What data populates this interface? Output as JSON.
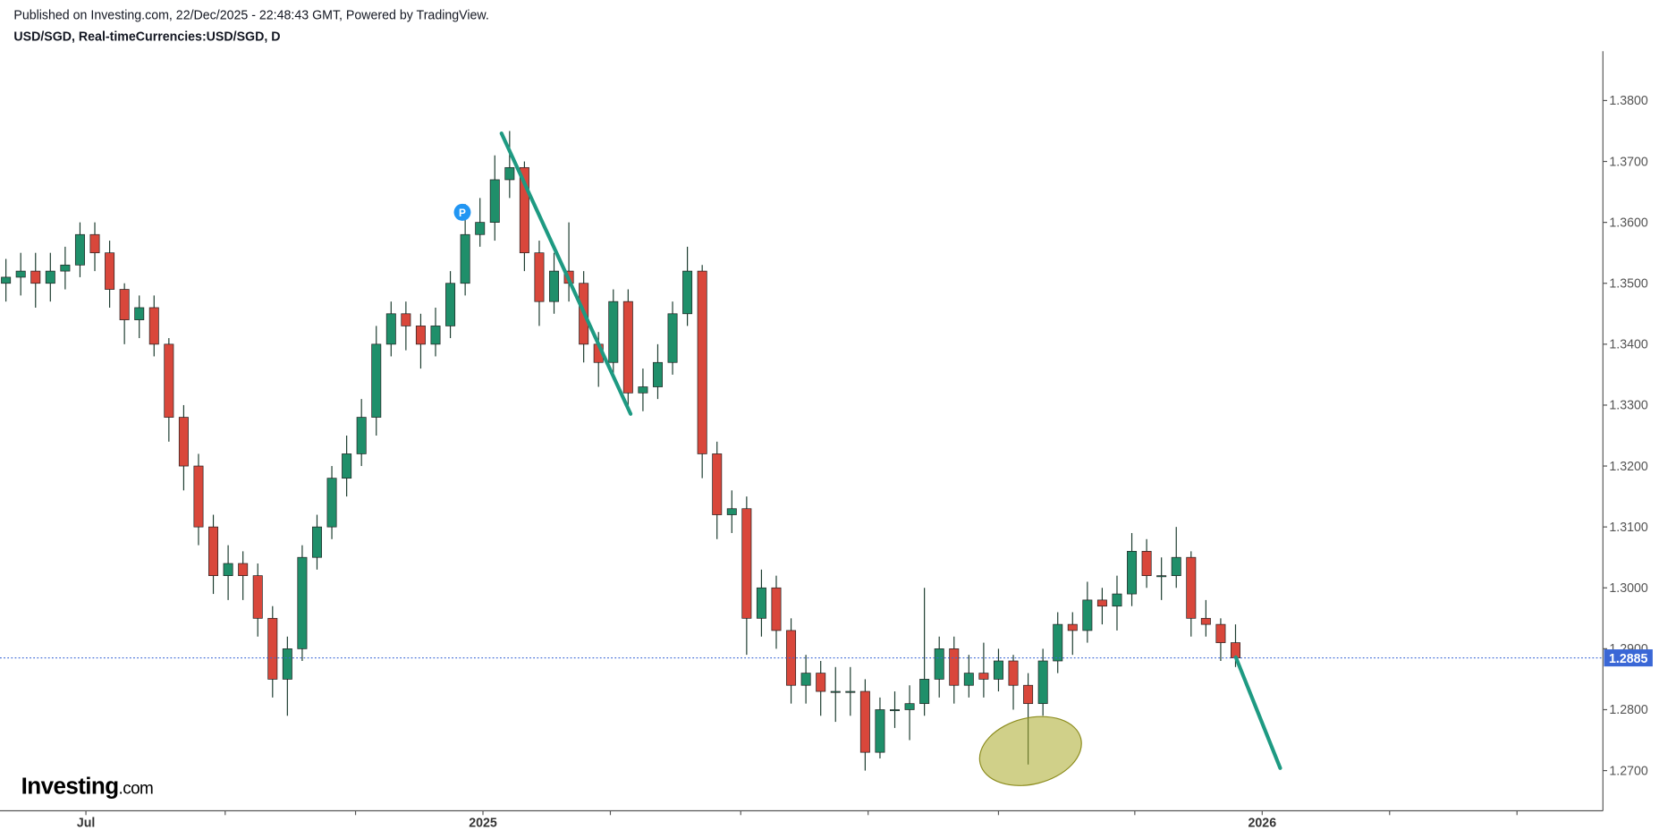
{
  "chart_data": {
    "type": "candlestick",
    "subtitle": "Published on Investing.com, 22/Dec/2025 - 22:48:43 GMT, Powered by TradingView.",
    "title": "USD/SGD, Real-timeCurrencies:USD/SGD, D",
    "open": [
      1.35,
      1.351,
      1.352,
      1.35,
      1.352,
      1.353,
      1.358,
      1.355,
      1.349,
      1.344,
      1.346,
      1.34,
      1.328,
      1.32,
      1.31,
      1.302,
      1.304,
      1.302,
      1.295,
      1.285,
      1.29,
      1.305,
      1.31,
      1.318,
      1.322,
      1.328,
      1.34,
      1.345,
      1.343,
      1.34,
      1.343,
      1.35,
      1.358,
      1.36,
      1.367,
      1.369,
      1.355,
      1.347,
      1.352,
      1.35,
      1.34,
      1.337,
      1.347,
      1.332,
      1.333,
      1.337,
      1.345,
      1.352,
      1.322,
      1.312,
      1.313,
      1.295,
      1.3,
      1.293,
      1.284,
      1.286,
      1.283,
      1.283,
      1.283,
      1.273,
      1.28,
      1.28,
      1.281,
      1.285,
      1.29,
      1.284,
      1.286,
      1.285,
      1.288,
      1.284,
      1.281,
      1.288,
      1.294,
      1.293,
      1.298,
      1.297,
      1.299,
      1.306,
      1.302,
      1.302,
      1.305,
      1.295,
      1.294,
      1.291
    ],
    "high": [
      1.354,
      1.355,
      1.355,
      1.355,
      1.356,
      1.36,
      1.36,
      1.357,
      1.35,
      1.348,
      1.348,
      1.341,
      1.33,
      1.322,
      1.312,
      1.307,
      1.306,
      1.304,
      1.297,
      1.292,
      1.307,
      1.312,
      1.32,
      1.325,
      1.331,
      1.343,
      1.347,
      1.347,
      1.345,
      1.346,
      1.352,
      1.363,
      1.364,
      1.371,
      1.375,
      1.37,
      1.357,
      1.355,
      1.36,
      1.352,
      1.342,
      1.349,
      1.349,
      1.336,
      1.34,
      1.347,
      1.356,
      1.353,
      1.324,
      1.316,
      1.315,
      1.303,
      1.302,
      1.295,
      1.289,
      1.288,
      1.287,
      1.287,
      1.285,
      1.282,
      1.283,
      1.284,
      1.3,
      1.292,
      1.292,
      1.289,
      1.291,
      1.29,
      1.289,
      1.286,
      1.29,
      1.296,
      1.296,
      1.301,
      1.3,
      1.302,
      1.309,
      1.308,
      1.305,
      1.31,
      1.306,
      1.298,
      1.295,
      1.294
    ],
    "low": [
      1.347,
      1.348,
      1.346,
      1.347,
      1.349,
      1.351,
      1.352,
      1.346,
      1.34,
      1.341,
      1.338,
      1.324,
      1.316,
      1.307,
      1.299,
      1.298,
      1.298,
      1.292,
      1.282,
      1.279,
      1.288,
      1.303,
      1.308,
      1.315,
      1.32,
      1.325,
      1.338,
      1.339,
      1.336,
      1.338,
      1.341,
      1.348,
      1.356,
      1.357,
      1.364,
      1.352,
      1.343,
      1.345,
      1.347,
      1.337,
      1.333,
      1.335,
      1.329,
      1.329,
      1.331,
      1.335,
      1.343,
      1.318,
      1.308,
      1.309,
      1.289,
      1.292,
      1.29,
      1.281,
      1.281,
      1.279,
      1.278,
      1.279,
      1.27,
      1.272,
      1.277,
      1.275,
      1.279,
      1.282,
      1.281,
      1.282,
      1.282,
      1.283,
      1.28,
      1.271,
      1.279,
      1.286,
      1.289,
      1.291,
      1.294,
      1.293,
      1.297,
      1.3,
      1.298,
      1.3,
      1.292,
      1.292,
      1.288,
      1.287
    ],
    "close": [
      1.351,
      1.352,
      1.35,
      1.352,
      1.353,
      1.358,
      1.355,
      1.349,
      1.344,
      1.346,
      1.34,
      1.328,
      1.32,
      1.31,
      1.302,
      1.304,
      1.302,
      1.295,
      1.285,
      1.29,
      1.305,
      1.31,
      1.318,
      1.322,
      1.328,
      1.34,
      1.345,
      1.343,
      1.34,
      1.343,
      1.35,
      1.358,
      1.36,
      1.367,
      1.369,
      1.355,
      1.347,
      1.352,
      1.35,
      1.34,
      1.337,
      1.347,
      1.332,
      1.333,
      1.337,
      1.345,
      1.352,
      1.322,
      1.312,
      1.313,
      1.295,
      1.3,
      1.293,
      1.284,
      1.286,
      1.283,
      1.283,
      1.283,
      1.273,
      1.28,
      1.28,
      1.281,
      1.285,
      1.29,
      1.284,
      1.286,
      1.285,
      1.288,
      1.284,
      1.281,
      1.288,
      1.294,
      1.293,
      1.298,
      1.297,
      1.299,
      1.306,
      1.302,
      1.302,
      1.305,
      1.295,
      1.294,
      1.291,
      1.2885
    ],
    "up_color": "#1f8f6a",
    "down_color": "#d9473b",
    "ylim": [
      1.2634,
      1.3881
    ],
    "yticks": [
      {
        "value": 1.27,
        "label": "1.2700"
      },
      {
        "value": 1.28,
        "label": "1.2800"
      },
      {
        "value": 1.29,
        "label": "1.2900"
      },
      {
        "value": 1.3,
        "label": "1.3000"
      },
      {
        "value": 1.31,
        "label": "1.3100"
      },
      {
        "value": 1.32,
        "label": "1.3200"
      },
      {
        "value": 1.33,
        "label": "1.3300"
      },
      {
        "value": 1.34,
        "label": "1.3400"
      },
      {
        "value": 1.35,
        "label": "1.3500"
      },
      {
        "value": 1.36,
        "label": "1.3600"
      },
      {
        "value": 1.37,
        "label": "1.3700"
      },
      {
        "value": 1.38,
        "label": "1.3800"
      }
    ],
    "xlim": [
      -0.4,
      107.8
    ],
    "xticks": [
      {
        "value": 5.4,
        "label": "Jul"
      },
      {
        "value": 32.2,
        "label": "2025"
      },
      {
        "value": 84.8,
        "label": "2026"
      }
    ],
    "xminor": [
      14.8,
      23.6,
      40.8,
      49.6,
      58.2,
      67,
      76.2,
      93.4,
      102
    ],
    "last_price": 1.2885,
    "last_price_color": "#3a67d6",
    "grid": false
  },
  "branding": {
    "logo": "Investing",
    "logo_suffix": ".com"
  }
}
